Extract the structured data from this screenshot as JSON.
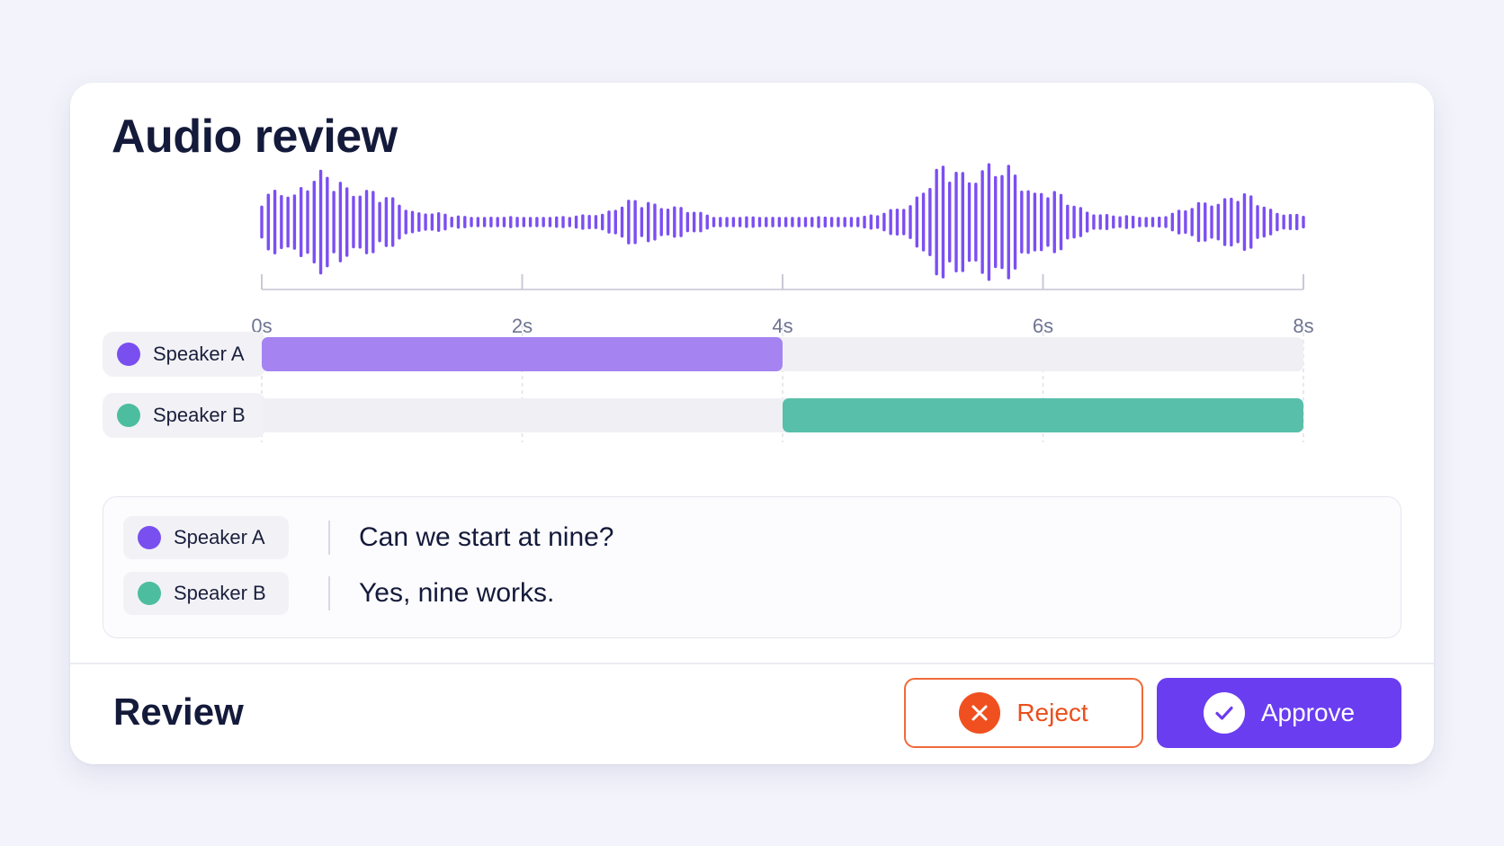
{
  "title": "Audio review",
  "timeline": {
    "ticks": [
      "0s",
      "2s",
      "4s",
      "6s",
      "8s"
    ],
    "duration_s": 8
  },
  "colors": {
    "accent": "#6a3df0",
    "waveform": "#7b4ff2",
    "speaker_a": "#7a4ff0",
    "speaker_a_segment": "#a584f2",
    "speaker_b": "#4dbd9f",
    "speaker_b_segment": "#58bfaa",
    "reject": "#ea4f1c"
  },
  "speakers": [
    {
      "label": "Speaker A",
      "segment_start_s": 0,
      "segment_end_s": 4
    },
    {
      "label": "Speaker B",
      "segment_start_s": 4,
      "segment_end_s": 8
    }
  ],
  "transcript": [
    {
      "speaker": "Speaker A",
      "text": "Can we start at nine?"
    },
    {
      "speaker": "Speaker B",
      "text": "Yes, nine works."
    }
  ],
  "review": {
    "label": "Review",
    "reject_label": "Reject",
    "approve_label": "Approve",
    "reject_icon": "x-icon",
    "approve_icon": "check-icon"
  }
}
